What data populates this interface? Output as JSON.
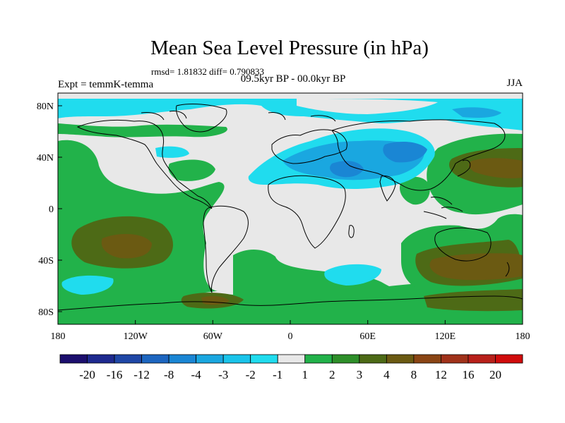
{
  "title": "Mean Sea Level Pressure (in hPa)",
  "stats": "rmsd= 1.81832 diff= 0.790833",
  "period": "09.5kyr BP - 00.0kyr BP",
  "experiment": "Expt = temmK-temma",
  "season": "JJA",
  "axes": {
    "lat_ticks": [
      "80N",
      "40N",
      "0",
      "40S",
      "80S"
    ],
    "lon_ticks": [
      "180",
      "120W",
      "60W",
      "0",
      "60E",
      "120E",
      "180"
    ]
  },
  "colorbar": {
    "colors": [
      "#1c0f6e",
      "#1e2a8f",
      "#1f47a6",
      "#1d66c0",
      "#1a86d4",
      "#1aa7e0",
      "#1ac4ea",
      "#20dcee",
      "#e8e8e8",
      "#22b24a",
      "#2e8f2a",
      "#4d6a16",
      "#6b5a12",
      "#8a4514",
      "#a0321a",
      "#b8201a",
      "#d00c0c"
    ],
    "labels": [
      "-20",
      "-16",
      "-12",
      "-8",
      "-4",
      "-3",
      "-2",
      "-1",
      "1",
      "2",
      "3",
      "4",
      "8",
      "12",
      "16",
      "20"
    ]
  },
  "palette": {
    "neutral": "#e8e8e8",
    "light_green": "#22b24a",
    "dark_green": "#4d6a16",
    "brown": "#6b5a12",
    "cyan": "#20dcee",
    "light_blue": "#1ac4ea",
    "blue": "#1aa7e0",
    "deep_blue": "#1a86d4"
  }
}
